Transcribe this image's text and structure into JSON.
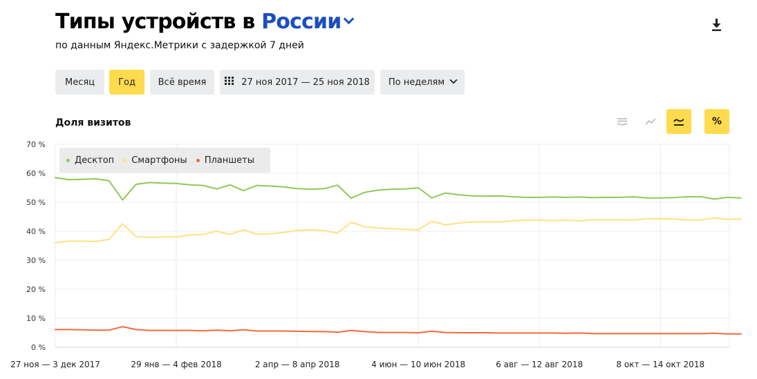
{
  "header": {
    "title_prefix": "Типы устройств в",
    "title_region": "России",
    "subtitle": "по данным Яндекс.Метрики с задержкой 7 дней",
    "download_icon": "download-icon"
  },
  "controls": {
    "period_month": "Месяц",
    "period_year": "Год",
    "period_all": "Всё время",
    "date_range": "27 ноя 2017 — 25 ноя 2018",
    "grouping": "По неделям",
    "active_period": "Год"
  },
  "chart_panel": {
    "metric_label": "Доля визитов",
    "mode_icons": [
      "stacked-area-icon",
      "line-icon",
      "smooth-line-icon",
      "percent-icon"
    ],
    "percent_symbol": "%"
  },
  "chart_data": {
    "type": "line",
    "ylim": [
      0,
      70
    ],
    "y_ticks": [
      "70 %",
      "60 %",
      "50 %",
      "40 %",
      "30 %",
      "20 %",
      "10 %",
      "0 %"
    ],
    "x_tick_labels": [
      "27 ноя — 3 дек 2017",
      "29 янв — 4 фев 2018",
      "2 апр — 8 апр 2018",
      "4 июн — 10 июн 2018",
      "6 авг — 12 авг 2018",
      "8 окт — 14 окт 2018"
    ],
    "x_tick_week_index": [
      0,
      9,
      18,
      27,
      36,
      45
    ],
    "grid": true,
    "legend_position": "top-left",
    "series": [
      {
        "name": "Десктоп",
        "color": "#8fc856",
        "values": [
          58.5,
          57.8,
          57.9,
          58.1,
          57.4,
          50.8,
          56.2,
          56.8,
          56.6,
          56.5,
          56.0,
          55.8,
          54.6,
          56.0,
          54.0,
          55.8,
          55.6,
          55.3,
          54.7,
          54.5,
          54.7,
          55.9,
          51.4,
          53.4,
          54.2,
          54.5,
          54.6,
          55.0,
          51.5,
          53.2,
          52.6,
          52.2,
          52.1,
          52.2,
          51.9,
          51.7,
          51.7,
          51.8,
          51.7,
          51.8,
          51.6,
          51.7,
          51.7,
          51.9,
          51.5,
          51.5,
          51.6,
          51.9,
          51.9,
          51.1,
          51.7,
          51.5
        ]
      },
      {
        "name": "Смартфоны",
        "color": "#fde27f",
        "values": [
          36.0,
          36.6,
          36.6,
          36.5,
          37.2,
          42.6,
          38.2,
          37.9,
          38.0,
          38.1,
          38.7,
          38.9,
          40.0,
          38.9,
          40.5,
          39.0,
          39.2,
          39.6,
          40.3,
          40.5,
          40.2,
          39.4,
          43.1,
          41.6,
          41.1,
          40.9,
          40.7,
          40.4,
          43.5,
          42.2,
          42.8,
          43.2,
          43.3,
          43.2,
          43.6,
          43.8,
          43.8,
          43.7,
          43.8,
          43.6,
          44.0,
          44.0,
          44.0,
          43.9,
          44.3,
          44.3,
          44.2,
          43.9,
          43.9,
          44.6,
          44.1,
          44.3
        ]
      },
      {
        "name": "Планшеты",
        "color": "#f26840",
        "values": [
          6.1,
          6.1,
          6.0,
          5.9,
          5.9,
          7.1,
          6.1,
          5.8,
          5.8,
          5.8,
          5.8,
          5.7,
          5.9,
          5.7,
          6.0,
          5.6,
          5.6,
          5.6,
          5.5,
          5.4,
          5.4,
          5.2,
          5.8,
          5.4,
          5.1,
          5.1,
          5.1,
          5.0,
          5.5,
          5.1,
          5.0,
          5.0,
          5.0,
          4.9,
          4.9,
          4.9,
          4.9,
          4.9,
          4.8,
          4.9,
          4.7,
          4.7,
          4.7,
          4.7,
          4.7,
          4.7,
          4.7,
          4.7,
          4.7,
          4.8,
          4.6,
          4.6
        ]
      }
    ]
  }
}
